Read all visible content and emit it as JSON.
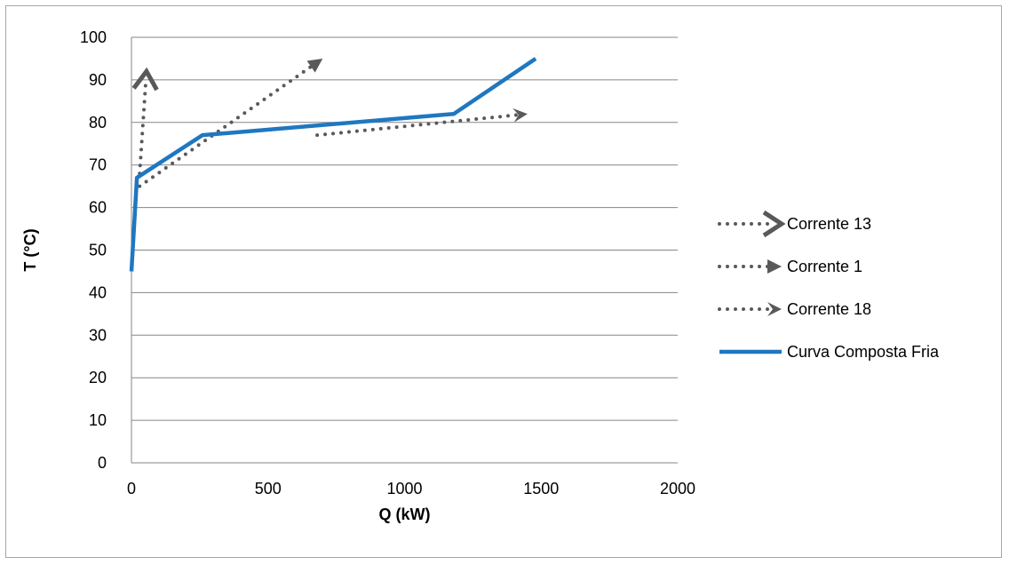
{
  "chart_data": {
    "type": "line",
    "title": "",
    "xlabel": "Q (kW)",
    "ylabel": "T (°C)",
    "xlim": [
      0,
      2000
    ],
    "ylim": [
      0,
      100
    ],
    "xticks": [
      0,
      500,
      1000,
      1500,
      2000
    ],
    "yticks": [
      0,
      10,
      20,
      30,
      40,
      50,
      60,
      70,
      80,
      90,
      100
    ],
    "grid": "horizontal",
    "legend_position": "right",
    "series": [
      {
        "name": "Corrente 13",
        "style": "dotted-arrow-open",
        "color": "#595959",
        "points": [
          [
            30,
            68
          ],
          [
            55,
            92
          ]
        ]
      },
      {
        "name": "Corrente 1",
        "style": "dotted-arrow",
        "color": "#595959",
        "points": [
          [
            30,
            65
          ],
          [
            700,
            95
          ]
        ]
      },
      {
        "name": "Corrente 18",
        "style": "dotted-arrow-stealth",
        "color": "#595959",
        "points": [
          [
            680,
            77
          ],
          [
            1450,
            82
          ]
        ]
      },
      {
        "name": "Curva Composta Fria",
        "style": "solid",
        "color": "#1f77c0",
        "points": [
          [
            0,
            45
          ],
          [
            20,
            67
          ],
          [
            260,
            77
          ],
          [
            1180,
            82
          ],
          [
            1480,
            95
          ]
        ]
      }
    ]
  }
}
